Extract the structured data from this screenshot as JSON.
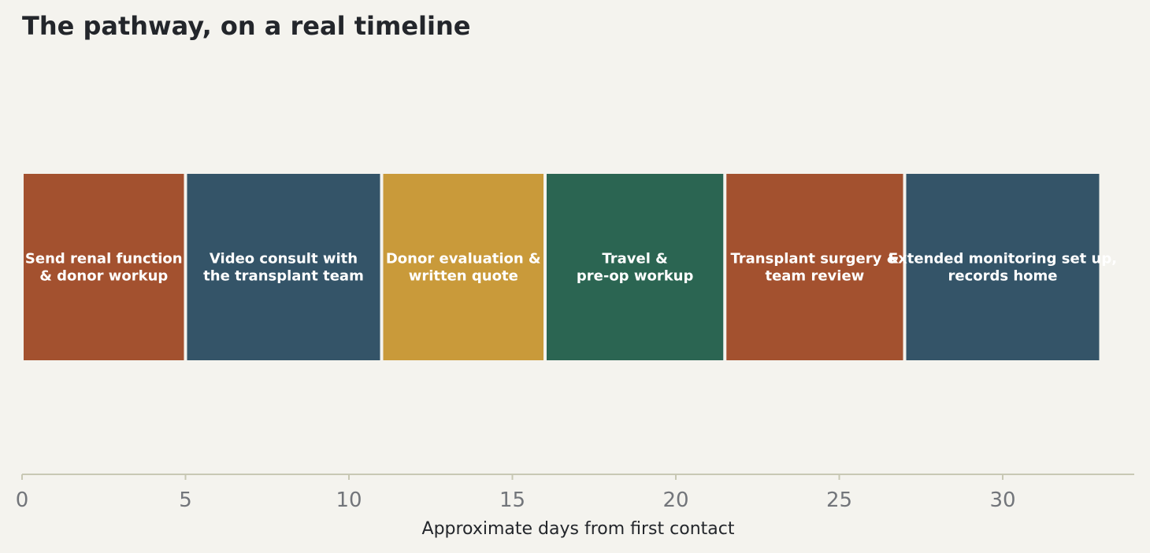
{
  "chart_data": {
    "type": "bar",
    "orientation": "horizontal",
    "title": "The pathway, on a real timeline",
    "xlabel": "Approximate days from first contact",
    "ylabel": "",
    "xlim": [
      0,
      34
    ],
    "xticks": [
      0,
      5,
      10,
      15,
      20,
      25,
      30
    ],
    "grid": false,
    "legend": "none",
    "segments": [
      {
        "label": [
          "Send renal function",
          "& donor workup"
        ],
        "start": 0,
        "end": 5,
        "color": "#a3512f"
      },
      {
        "label": [
          "Video consult with",
          "the transplant team"
        ],
        "start": 5,
        "end": 11,
        "color": "#345468"
      },
      {
        "label": [
          "Donor evaluation &",
          "written quote"
        ],
        "start": 11,
        "end": 16,
        "color": "#c99a3a"
      },
      {
        "label": [
          "Travel &",
          "pre-op workup"
        ],
        "start": 16,
        "end": 21.5,
        "color": "#2b6552"
      },
      {
        "label": [
          "Transplant surgery &",
          "team review"
        ],
        "start": 21.5,
        "end": 27,
        "color": "#a3512f"
      },
      {
        "label": [
          "Extended monitoring set up,",
          "records home"
        ],
        "start": 27,
        "end": 33,
        "color": "#345468"
      }
    ],
    "colors": {
      "background": "#f4f3ee",
      "axis": "#c8c8b4",
      "tick_text": "#72757a",
      "title_text": "#23262b",
      "segment_text": "#ffffff"
    }
  }
}
